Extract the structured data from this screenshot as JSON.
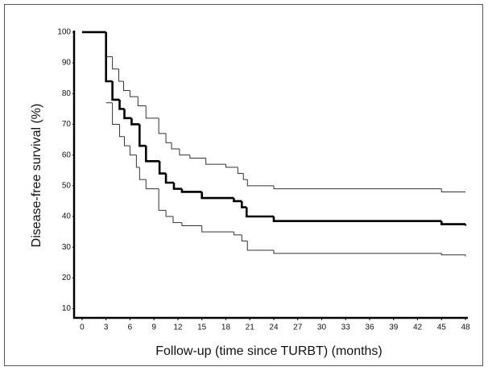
{
  "chart_data": {
    "type": "step",
    "xlabel": "Follow-up (time since TURBT) (months)",
    "ylabel": "Disease-free survival (%)",
    "xlim": [
      -1,
      48.3
    ],
    "ylim": [
      7,
      100.5
    ],
    "xticks": [
      0,
      3,
      6,
      9,
      12,
      15,
      18,
      21,
      24,
      27,
      30,
      33,
      36,
      39,
      42,
      45,
      48
    ],
    "yticks": [
      10,
      20,
      30,
      40,
      50,
      60,
      70,
      80,
      90,
      100
    ],
    "series": [
      {
        "color": "#000000",
        "line_width": 2.6,
        "x": [
          0,
          3,
          3.8,
          4.7,
          5.3,
          6.2,
          7.2,
          8,
          9.7,
          10.5,
          11.5,
          12.5,
          15,
          19,
          20,
          20.6,
          24,
          45,
          48
        ],
        "values": [
          100,
          84,
          78,
          75,
          72,
          70,
          63,
          58,
          54,
          51,
          49,
          48,
          46,
          45,
          43,
          40,
          38.5,
          37.5,
          37
        ]
      },
      {
        "color": "#333333",
        "line_width": 1,
        "x": [
          3,
          3.8,
          4.6,
          5.2,
          6,
          7,
          8,
          9.6,
          10.5,
          11.2,
          12.2,
          13.5,
          15.5,
          18,
          19.5,
          20.2,
          20.7,
          24,
          45,
          48
        ],
        "values": [
          92,
          88,
          84,
          81,
          79,
          76,
          72,
          67,
          64,
          62,
          60,
          59,
          57,
          56,
          54,
          52,
          50,
          49,
          48,
          48
        ]
      },
      {
        "color": "#333333",
        "line_width": 1,
        "x": [
          3,
          3.8,
          4.7,
          5.3,
          6,
          6.8,
          7.2,
          8,
          9.6,
          10.5,
          11.4,
          12.5,
          15,
          19,
          20,
          20.7,
          24,
          45,
          48
        ],
        "values": [
          77,
          70,
          66,
          63,
          60,
          56,
          52,
          49,
          42,
          40,
          38,
          37,
          35,
          34,
          32,
          29,
          28,
          27.5,
          27
        ]
      }
    ]
  }
}
